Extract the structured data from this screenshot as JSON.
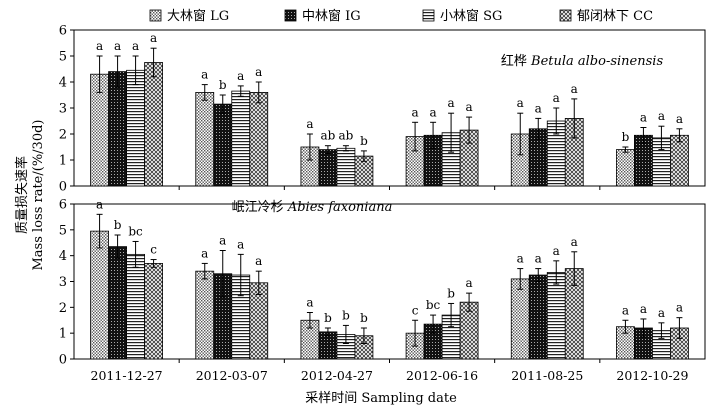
{
  "legend": {
    "entries": [
      {
        "zh": "大林窗",
        "en": "LG"
      },
      {
        "zh": "中林窗",
        "en": "IG"
      },
      {
        "zh": "小林窗",
        "en": "SG"
      },
      {
        "zh": "郁闭林下",
        "en": "CC"
      }
    ]
  },
  "axes": {
    "ylabel_zh": "质量损失速率",
    "ylabel_en": "Mass loss rate/(%/30d)",
    "xlabel": "采样时间 Sampling date"
  },
  "chart_data": [
    {
      "type": "bar",
      "title_zh": "红桦",
      "title_species": "Betula albo-sinensis",
      "categories": [
        "2011-12-27",
        "2012-03-07",
        "2012-04-27",
        "2012-06-16",
        "2011-08-25",
        "2012-10-29"
      ],
      "ylim": [
        0,
        6
      ],
      "yticks": [
        0,
        1,
        2,
        3,
        4,
        5,
        6
      ],
      "series": [
        {
          "name": "大林窗 LG",
          "values": [
            4.3,
            3.6,
            1.5,
            1.9,
            2.0,
            1.4
          ],
          "errors": [
            0.7,
            0.3,
            0.5,
            0.55,
            0.8,
            0.1
          ],
          "letters": [
            "a",
            "a",
            "a",
            "a",
            "a",
            "b"
          ]
        },
        {
          "name": "中林窗 IG",
          "values": [
            4.4,
            3.15,
            1.4,
            1.95,
            2.2,
            1.95
          ],
          "errors": [
            0.6,
            0.35,
            0.15,
            0.5,
            0.4,
            0.3
          ],
          "letters": [
            "a",
            "b",
            "ab",
            "a",
            "a",
            "a"
          ]
        },
        {
          "name": "小林窗 SG",
          "values": [
            4.45,
            3.65,
            1.45,
            2.05,
            2.5,
            1.85
          ],
          "errors": [
            0.55,
            0.2,
            0.1,
            0.75,
            0.5,
            0.45
          ],
          "letters": [
            "a",
            "a",
            "ab",
            "a",
            "a",
            "a"
          ]
        },
        {
          "name": "郁闭林下 CC",
          "values": [
            4.75,
            3.6,
            1.15,
            2.15,
            2.6,
            1.95
          ],
          "errors": [
            0.55,
            0.4,
            0.2,
            0.5,
            0.75,
            0.25
          ],
          "letters": [
            "a",
            "a",
            "b",
            "a",
            "a",
            "a"
          ]
        }
      ]
    },
    {
      "type": "bar",
      "title_zh": "岷江冷杉",
      "title_species": "Abies faxoniana",
      "categories": [
        "2011-12-27",
        "2012-03-07",
        "2012-04-27",
        "2012-06-16",
        "2011-08-25",
        "2012-10-29"
      ],
      "ylim": [
        0,
        6
      ],
      "yticks": [
        0,
        1,
        2,
        3,
        4,
        5,
        6
      ],
      "series": [
        {
          "name": "大林窗 LG",
          "values": [
            4.95,
            3.4,
            1.5,
            1.0,
            3.1,
            1.25
          ],
          "errors": [
            0.65,
            0.3,
            0.3,
            0.5,
            0.4,
            0.25
          ],
          "letters": [
            "a",
            "a",
            "a",
            "c",
            "a",
            "a"
          ]
        },
        {
          "name": "中林窗 IG",
          "values": [
            4.35,
            3.3,
            1.05,
            1.35,
            3.25,
            1.2
          ],
          "errors": [
            0.45,
            0.9,
            0.15,
            0.35,
            0.25,
            0.35
          ],
          "letters": [
            "b",
            "a",
            "b",
            "bc",
            "a",
            "a"
          ]
        },
        {
          "name": "小林窗 SG",
          "values": [
            4.05,
            3.25,
            0.95,
            1.7,
            3.35,
            1.1
          ],
          "errors": [
            0.5,
            0.8,
            0.35,
            0.45,
            0.45,
            0.3
          ],
          "letters": [
            "bc",
            "a",
            "b",
            "b",
            "a",
            "a"
          ]
        },
        {
          "name": "郁闭林下 CC",
          "values": [
            3.7,
            2.95,
            0.9,
            2.2,
            3.5,
            1.2
          ],
          "errors": [
            0.15,
            0.45,
            0.3,
            0.35,
            0.65,
            0.4
          ],
          "letters": [
            "c",
            "a",
            "b",
            "a",
            "a",
            "a"
          ]
        }
      ]
    }
  ]
}
